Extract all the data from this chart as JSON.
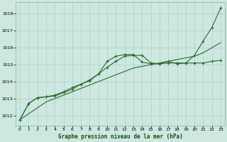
{
  "background_color": "#cce8e0",
  "grid_color": "#b0d0c8",
  "line_color": "#2d6a2d",
  "title": "Graphe pression niveau de la mer (hPa)",
  "xlim": [
    -0.5,
    23.5
  ],
  "ylim": [
    1011.4,
    1018.7
  ],
  "yticks": [
    1012,
    1013,
    1014,
    1015,
    1016,
    1017,
    1018
  ],
  "xticks": [
    0,
    1,
    2,
    3,
    4,
    5,
    6,
    7,
    8,
    9,
    10,
    11,
    12,
    13,
    14,
    15,
    16,
    17,
    18,
    19,
    20,
    21,
    22,
    23
  ],
  "xtick_labels": [
    "0",
    "1",
    "2",
    "3",
    "4",
    "5",
    "6",
    "7",
    "8",
    "9",
    "10",
    "11",
    "12",
    "13",
    "14",
    "15",
    "16",
    "17",
    "18",
    "19",
    "20",
    "21",
    "22",
    "23"
  ],
  "series_straight": [
    1011.75,
    1012.1,
    1012.45,
    1012.8,
    1013.0,
    1013.2,
    1013.4,
    1013.6,
    1013.8,
    1014.0,
    1014.2,
    1014.4,
    1014.6,
    1014.8,
    1014.9,
    1015.0,
    1015.1,
    1015.2,
    1015.3,
    1015.4,
    1015.5,
    1015.7,
    1016.0,
    1016.3
  ],
  "series_high": [
    1011.75,
    1012.7,
    1013.05,
    1013.1,
    1013.2,
    1013.4,
    1013.65,
    1013.85,
    1014.1,
    1014.45,
    1015.2,
    1015.5,
    1015.6,
    1015.6,
    1015.15,
    1015.05,
    1015.05,
    1015.2,
    1015.05,
    1015.1,
    1015.55,
    1016.4,
    1017.2,
    1018.35
  ],
  "series_mid": [
    1011.75,
    1012.7,
    1013.05,
    1013.1,
    1013.15,
    1013.35,
    1013.55,
    1013.85,
    1014.05,
    1014.45,
    1014.85,
    1015.2,
    1015.5,
    1015.55,
    1015.55,
    1015.1,
    1015.05,
    1015.1,
    1015.1,
    1015.1,
    1015.1,
    1015.1,
    1015.2,
    1015.25
  ]
}
